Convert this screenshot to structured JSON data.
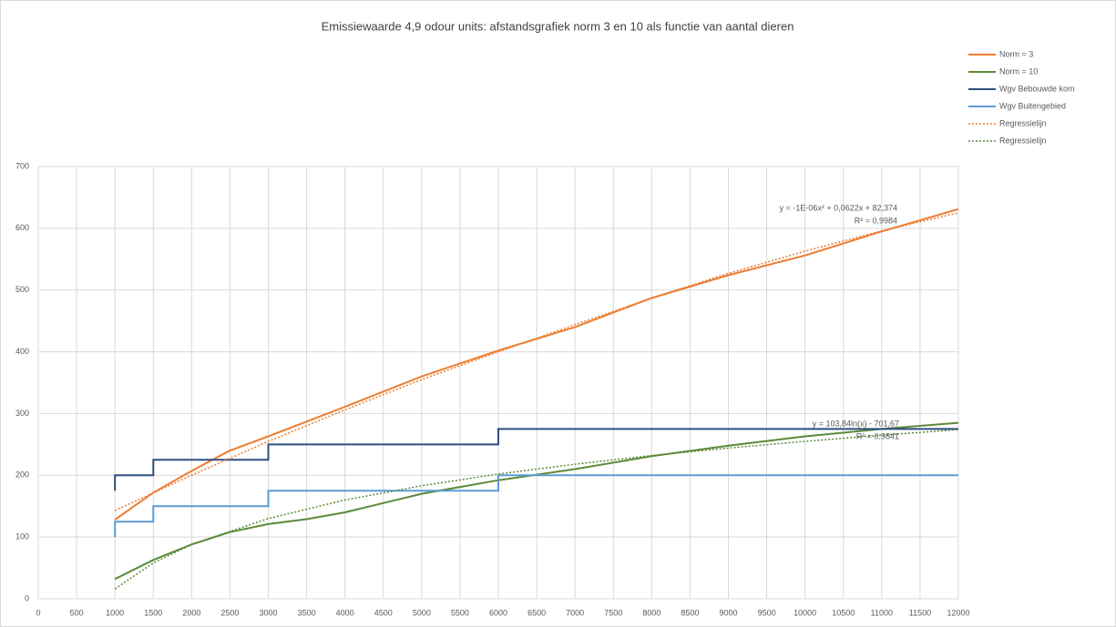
{
  "chart_data": {
    "type": "line",
    "title": "Emissiewaarde 4,9 odour units: afstandsgrafiek norm 3 en 10 als functie van aantal dieren",
    "xlim": [
      0,
      12000
    ],
    "xticks": [
      0,
      500,
      1000,
      1500,
      2000,
      2500,
      3000,
      3500,
      4000,
      4500,
      5000,
      5500,
      6000,
      6500,
      7000,
      7500,
      8000,
      8500,
      9000,
      9500,
      10000,
      10500,
      11000,
      11500,
      12000
    ],
    "ylim": [
      0,
      700
    ],
    "yticks": [
      0,
      100,
      200,
      300,
      400,
      500,
      600,
      700
    ],
    "grid": true,
    "legend": "right",
    "series": [
      {
        "name": "Norm = 3",
        "color": "#ED7D31",
        "style": "solid",
        "x": [
          1000,
          1500,
          2000,
          2500,
          3000,
          4000,
          5000,
          6000,
          7000,
          8000,
          9000,
          10000,
          11000,
          12000
        ],
        "values": [
          128,
          172,
          207,
          240,
          263,
          311,
          360,
          402,
          440,
          487,
          524,
          556,
          595,
          631
        ]
      },
      {
        "name": "Norm = 10",
        "color": "#5B8A3A",
        "style": "solid",
        "x": [
          1000,
          1500,
          2000,
          2500,
          3000,
          3500,
          4000,
          4500,
          5000,
          6000,
          7000,
          8000,
          9000,
          10000,
          11000,
          12000
        ],
        "values": [
          32,
          63,
          88,
          108,
          121,
          129,
          140,
          155,
          170,
          192,
          210,
          231,
          248,
          263,
          275,
          285
        ]
      },
      {
        "name": "Wgv Bebouwde kom",
        "color": "#2F4E7E",
        "style": "solid",
        "x": [
          1000,
          1000,
          1500,
          1500,
          3000,
          3000,
          6000,
          6000,
          12000
        ],
        "values": [
          175,
          200,
          200,
          225,
          225,
          250,
          250,
          275,
          275
        ]
      },
      {
        "name": "Wgv Buitengebied",
        "color": "#5B9BD5",
        "style": "solid",
        "x": [
          1000,
          1000,
          1500,
          1500,
          3000,
          3000,
          6000,
          6000,
          12000
        ],
        "values": [
          100,
          125,
          125,
          150,
          150,
          175,
          175,
          200,
          200
        ]
      },
      {
        "name": "Regressielijn",
        "color": "#ED7D31",
        "style": "dotted",
        "x": [
          1000,
          2000,
          3000,
          4000,
          5000,
          6000,
          7000,
          8000,
          9000,
          10000,
          11000,
          12000
        ],
        "values": [
          143,
          200,
          255,
          306,
          355,
          400,
          444,
          487,
          527,
          563,
          596,
          625
        ]
      },
      {
        "name": "Regressielijn",
        "color": "#5B8A3A",
        "style": "dotted",
        "x": [
          1000,
          1500,
          2000,
          3000,
          4000,
          5000,
          6000,
          7000,
          8000,
          9000,
          10000,
          11000,
          12000
        ],
        "values": [
          16,
          58,
          88,
          130,
          160,
          183,
          202,
          218,
          232,
          244,
          255,
          265,
          274
        ]
      }
    ],
    "annotations": [
      [
        "y = -1E-06x² + 0,0622x + 82,374",
        "R² = 0,9984"
      ],
      [
        "y = 103,84ln(x) - 701,67",
        "R² = 0,9841"
      ]
    ]
  }
}
